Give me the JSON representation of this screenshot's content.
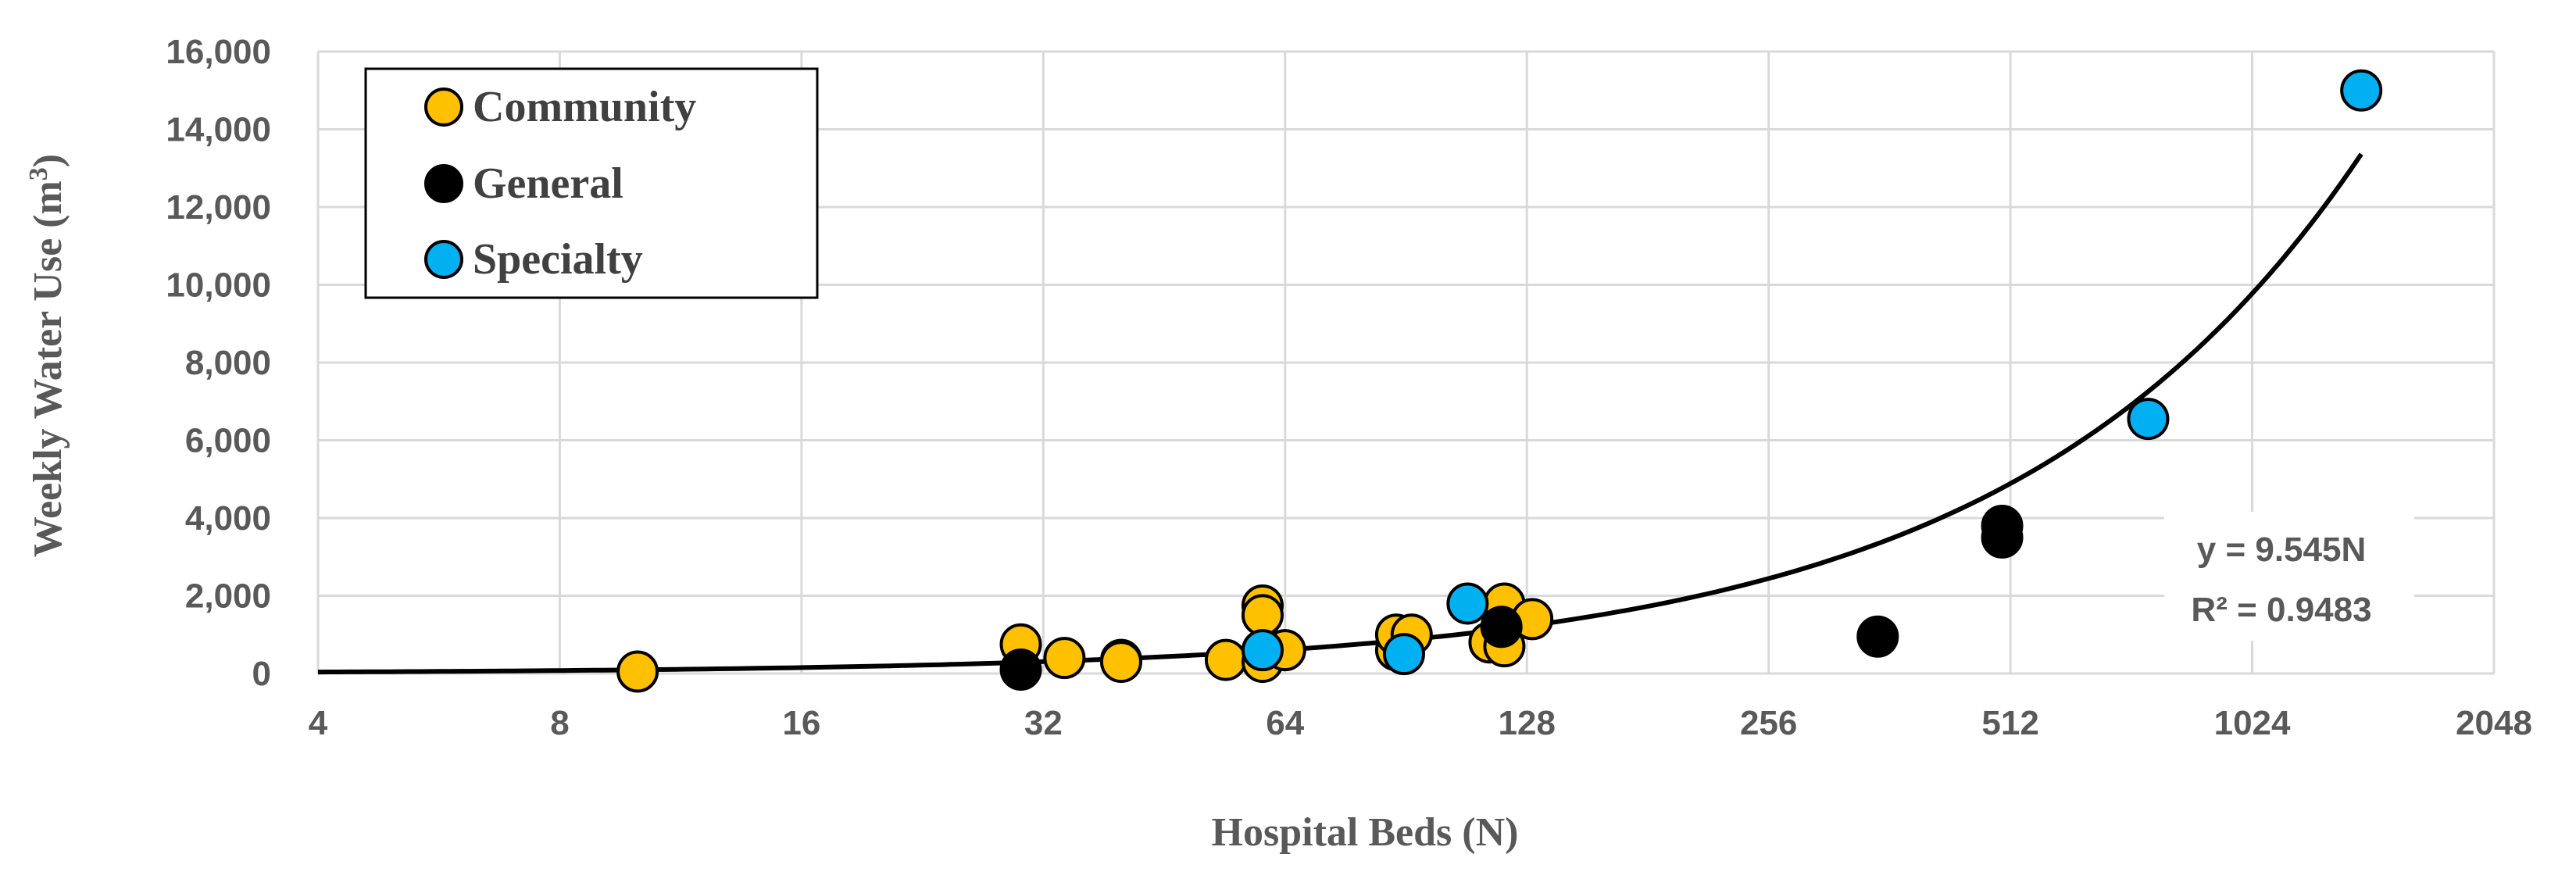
{
  "chart_data": {
    "type": "scatter",
    "title": "",
    "xlabel": "Hospital Beds (N)",
    "ylabel_main": "Weekly Water Use (m",
    "ylabel_sup": "3",
    "ylabel_close": ")",
    "x_scale": "log2",
    "xlim": [
      4,
      2048
    ],
    "ylim": [
      0,
      16000
    ],
    "x_ticks": [
      {
        "value": 4,
        "label": "4"
      },
      {
        "value": 8,
        "label": "8"
      },
      {
        "value": 16,
        "label": "16"
      },
      {
        "value": 32,
        "label": "32"
      },
      {
        "value": 64,
        "label": "64"
      },
      {
        "value": 128,
        "label": "128"
      },
      {
        "value": 256,
        "label": "256"
      },
      {
        "value": 512,
        "label": "512"
      },
      {
        "value": 1024,
        "label": "1024"
      },
      {
        "value": 2048,
        "label": "2048"
      }
    ],
    "y_ticks": [
      {
        "value": 0,
        "label": "0"
      },
      {
        "value": 2000,
        "label": "2,000"
      },
      {
        "value": 4000,
        "label": "4,000"
      },
      {
        "value": 6000,
        "label": "6,000"
      },
      {
        "value": 8000,
        "label": "8,000"
      },
      {
        "value": 10000,
        "label": "10,000"
      },
      {
        "value": 12000,
        "label": "12,000"
      },
      {
        "value": 14000,
        "label": "14,000"
      },
      {
        "value": 16000,
        "label": "16,000"
      }
    ],
    "grid": true,
    "legend_position": "top-left",
    "series": [
      {
        "name": "Community",
        "color": "#FFC000",
        "points": [
          {
            "x": 10,
            "y": 50
          },
          {
            "x": 30,
            "y": 750
          },
          {
            "x": 34,
            "y": 400
          },
          {
            "x": 40,
            "y": 350
          },
          {
            "x": 40,
            "y": 300
          },
          {
            "x": 54,
            "y": 350
          },
          {
            "x": 60,
            "y": 1750
          },
          {
            "x": 60,
            "y": 1500
          },
          {
            "x": 60,
            "y": 300
          },
          {
            "x": 64,
            "y": 600
          },
          {
            "x": 88,
            "y": 600
          },
          {
            "x": 88,
            "y": 1000
          },
          {
            "x": 92,
            "y": 1000
          },
          {
            "x": 115,
            "y": 800
          },
          {
            "x": 120,
            "y": 700
          },
          {
            "x": 120,
            "y": 1800
          },
          {
            "x": 130,
            "y": 1400
          }
        ]
      },
      {
        "name": "General",
        "color": "#000000",
        "points": [
          {
            "x": 30,
            "y": 100
          },
          {
            "x": 119,
            "y": 1200
          },
          {
            "x": 350,
            "y": 950
          },
          {
            "x": 500,
            "y": 3500
          },
          {
            "x": 500,
            "y": 3800
          }
        ]
      },
      {
        "name": "Specialty",
        "color": "#00B0F0",
        "points": [
          {
            "x": 60,
            "y": 600
          },
          {
            "x": 90,
            "y": 500
          },
          {
            "x": 108,
            "y": 1800
          },
          {
            "x": 760,
            "y": 6550
          },
          {
            "x": 1400,
            "y": 15000
          }
        ]
      }
    ],
    "trendline": {
      "type": "linear",
      "slope": 9.545,
      "x_range": [
        4,
        1400
      ],
      "equation": "y = 9.545N",
      "r_squared": "R² = 0.9483"
    }
  }
}
